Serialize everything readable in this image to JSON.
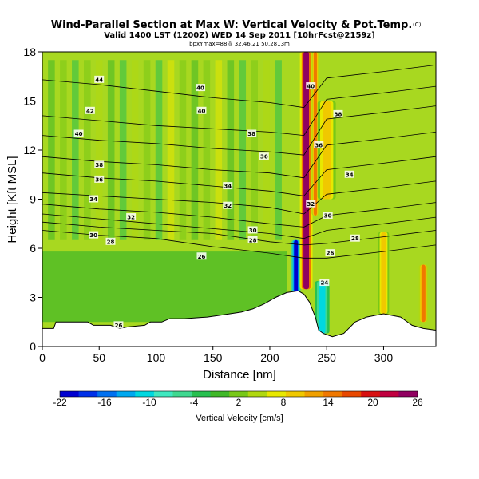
{
  "chart_data": {
    "type": "heatmap",
    "title": "Wind-Parallel Section at Max W: Vertical Velocity & Pot.Temp.",
    "title_mark": "(C)",
    "subtitle": "Valid 1400 LST (1200Z) WED 14 Sep 2011 [10hrFcst@2159z]",
    "subtitle2": "bpxYmax=88@ 32.46,21 50.2813m",
    "xlabel": "Distance [nm]",
    "ylabel": "Height [Kft MSL]",
    "xlim": [
      0,
      346
    ],
    "ylim": [
      0,
      18
    ],
    "x_ticks": [
      0,
      50,
      100,
      150,
      200,
      250,
      300
    ],
    "y_ticks": [
      0,
      3,
      6,
      9,
      12,
      15,
      18
    ],
    "colorbar": {
      "label": "Vertical Velocity [cm/s]",
      "ticks": [
        -22,
        -16,
        -10,
        -4,
        2,
        8,
        14,
        20,
        26
      ],
      "colors": [
        "#0000d0",
        "#0030e8",
        "#0070f0",
        "#00a8f0",
        "#00d8e0",
        "#40e8c0",
        "#40d890",
        "#28c050",
        "#40b828",
        "#78c818",
        "#b0d810",
        "#e8e800",
        "#f0c800",
        "#f0a000",
        "#f07800",
        "#e84800",
        "#d81010",
        "#c00040",
        "#900060"
      ]
    },
    "theta_contours": [
      {
        "value": 26,
        "heights": [
          7.1,
          6.8,
          6.6,
          6.1,
          5.7,
          5.4,
          5.4
        ]
      },
      {
        "value": 28,
        "heights": [
          7.6,
          7.3,
          7.1,
          6.9,
          6.4,
          6.2,
          6.3
        ]
      },
      {
        "value": 30,
        "heights": [
          8.1,
          7.8,
          7.5,
          7.2,
          6.9,
          6.6,
          7.1
        ]
      },
      {
        "value": 32,
        "heights": [
          8.7,
          8.4,
          8.2,
          7.9,
          7.5,
          7.3,
          8.0
        ]
      },
      {
        "value": 34,
        "heights": [
          9.4,
          9.2,
          9.0,
          8.8,
          8.5,
          8.1,
          9.3
        ]
      },
      {
        "value": 36,
        "heights": [
          10.6,
          10.3,
          10.1,
          9.8,
          9.5,
          9.2,
          10.8
        ]
      },
      {
        "value": 38,
        "heights": [
          11.6,
          11.3,
          11.1,
          10.8,
          10.6,
          10.3,
          12.3
        ]
      },
      {
        "value": 40,
        "heights": [
          12.9,
          12.6,
          12.4,
          12.1,
          11.9,
          11.7,
          13.9
        ]
      },
      {
        "value": 42,
        "heights": [
          14.1,
          13.8,
          13.5,
          13.3,
          13.1,
          12.9,
          15.1
        ]
      },
      {
        "value": 44,
        "heights": [
          16.3,
          16.0,
          15.6,
          15.2,
          14.9,
          14.6,
          16.4
        ]
      }
    ],
    "contour_x": [
      0,
      50,
      100,
      150,
      200,
      230,
      250
    ],
    "contour_labels": [
      {
        "text": "44",
        "x": 50,
        "y": 16.3
      },
      {
        "text": "42",
        "x": 42,
        "y": 14.4
      },
      {
        "text": "40",
        "x": 32,
        "y": 13.0
      },
      {
        "text": "38",
        "x": 50,
        "y": 11.1
      },
      {
        "text": "36",
        "x": 50,
        "y": 10.2
      },
      {
        "text": "34",
        "x": 45,
        "y": 9.0
      },
      {
        "text": "32",
        "x": 78,
        "y": 7.9
      },
      {
        "text": "30",
        "x": 45,
        "y": 6.8
      },
      {
        "text": "28",
        "x": 60,
        "y": 6.4
      },
      {
        "text": "26",
        "x": 140,
        "y": 5.5
      },
      {
        "text": "40",
        "x": 139,
        "y": 15.8
      },
      {
        "text": "40",
        "x": 140,
        "y": 14.4
      },
      {
        "text": "38",
        "x": 184,
        "y": 13.0
      },
      {
        "text": "36",
        "x": 195,
        "y": 11.6
      },
      {
        "text": "34",
        "x": 163,
        "y": 9.8
      },
      {
        "text": "32",
        "x": 163,
        "y": 8.6
      },
      {
        "text": "30",
        "x": 185,
        "y": 7.1
      },
      {
        "text": "28",
        "x": 185,
        "y": 6.5
      },
      {
        "text": "40",
        "x": 236,
        "y": 15.9
      },
      {
        "text": "38",
        "x": 260,
        "y": 14.2
      },
      {
        "text": "36",
        "x": 243,
        "y": 12.3
      },
      {
        "text": "34",
        "x": 270,
        "y": 10.5
      },
      {
        "text": "32",
        "x": 236,
        "y": 8.7
      },
      {
        "text": "30",
        "x": 251,
        "y": 8.0
      },
      {
        "text": "28",
        "x": 275,
        "y": 6.6
      },
      {
        "text": "26",
        "x": 253,
        "y": 5.7
      },
      {
        "text": "24",
        "x": 248,
        "y": 3.9
      },
      {
        "text": "26",
        "x": 67,
        "y": 1.3
      }
    ],
    "terrain": [
      [
        0,
        1.1
      ],
      [
        10,
        1.1
      ],
      [
        12,
        1.5
      ],
      [
        40,
        1.5
      ],
      [
        45,
        1.3
      ],
      [
        60,
        1.3
      ],
      [
        68,
        1.1
      ],
      [
        75,
        1.2
      ],
      [
        90,
        1.3
      ],
      [
        95,
        1.5
      ],
      [
        105,
        1.5
      ],
      [
        112,
        1.7
      ],
      [
        125,
        1.7
      ],
      [
        145,
        1.8
      ],
      [
        155,
        1.9
      ],
      [
        165,
        2.0
      ],
      [
        175,
        2.1
      ],
      [
        185,
        2.3
      ],
      [
        195,
        2.6
      ],
      [
        205,
        3.0
      ],
      [
        215,
        3.3
      ],
      [
        225,
        3.4
      ],
      [
        230,
        3.2
      ],
      [
        235,
        2.7
      ],
      [
        240,
        1.8
      ],
      [
        243,
        1.0
      ],
      [
        247,
        0.8
      ],
      [
        255,
        0.6
      ],
      [
        265,
        0.8
      ],
      [
        275,
        1.5
      ],
      [
        285,
        1.8
      ],
      [
        300,
        2.0
      ],
      [
        315,
        1.8
      ],
      [
        325,
        1.3
      ],
      [
        335,
        1.1
      ],
      [
        346,
        1.0
      ]
    ],
    "vertical_velocity_features": [
      {
        "x": 223,
        "width": 5,
        "top": 6.5,
        "bottom": 2.0,
        "value": -22
      },
      {
        "x": 232,
        "width": 7,
        "top": 18,
        "bottom": 3.5,
        "value": 26
      },
      {
        "x": 240,
        "width": 4,
        "top": 18,
        "bottom": 8.0,
        "value": 14
      },
      {
        "x": 246,
        "width": 8,
        "top": 4.0,
        "bottom": 0.8,
        "value": -10
      },
      {
        "x": 250,
        "width": 10,
        "top": 15.0,
        "bottom": 9.0,
        "value": 10
      },
      {
        "x": 300,
        "width": 6,
        "top": 7.0,
        "bottom": 2.0,
        "value": 10
      },
      {
        "x": 335,
        "width": 5,
        "top": 5.0,
        "bottom": 1.5,
        "value": 14
      }
    ]
  }
}
